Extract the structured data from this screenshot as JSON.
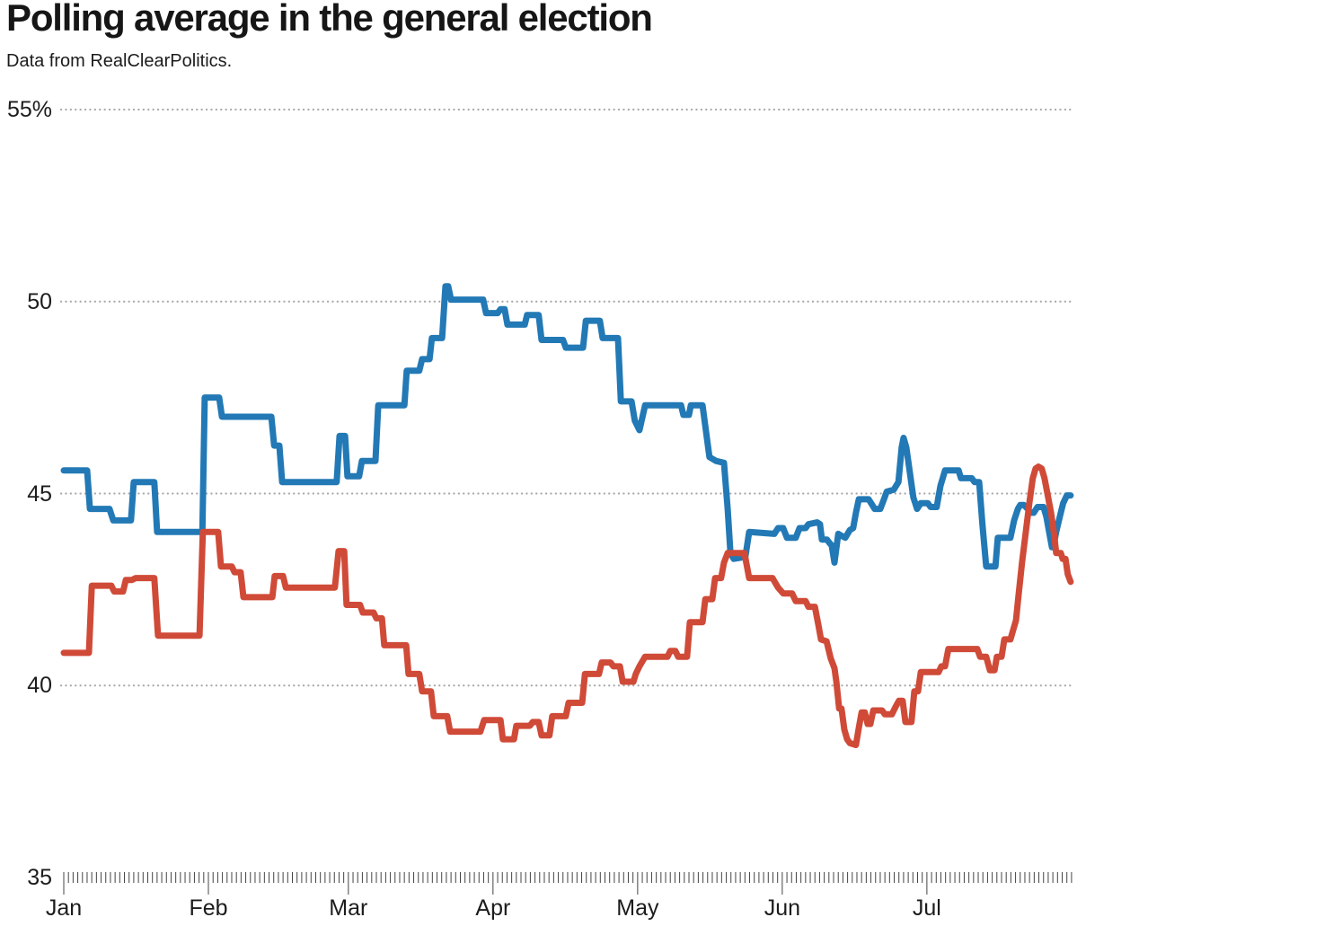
{
  "header": {
    "title": "Polling average in the general election",
    "subtitle": "Data from RealClearPolitics."
  },
  "chart_data": {
    "type": "line",
    "title": "Polling average in the general election",
    "source_note": "Data from RealClearPolitics.",
    "unit": "%",
    "legend": "none",
    "grid": "horizontal-dotted",
    "y_axis": {
      "labels": [
        "55%",
        "50",
        "45",
        "40",
        "35"
      ],
      "values": [
        55,
        50,
        45,
        40,
        35
      ],
      "gridlines": [
        55,
        50,
        45,
        40
      ],
      "range": [
        35,
        55
      ]
    },
    "x_axis": {
      "months": [
        "Jan",
        "Feb",
        "Mar",
        "Apr",
        "May",
        "Jun",
        "Jul"
      ],
      "month_start_days": [
        0,
        31,
        61,
        92,
        123,
        154,
        185
      ],
      "total_days": 216,
      "minor_tick": "daily"
    },
    "series": [
      {
        "name": "blue",
        "color": "#2279b5",
        "points": [
          [
            0,
            45.6
          ],
          [
            5,
            45.6
          ],
          [
            5.6,
            44.6
          ],
          [
            9.8,
            44.6
          ],
          [
            10.6,
            44.3
          ],
          [
            14.4,
            44.3
          ],
          [
            15,
            45.3
          ],
          [
            19.4,
            45.3
          ],
          [
            20,
            44
          ],
          [
            29.7,
            44
          ],
          [
            30.2,
            47.5
          ],
          [
            33.3,
            47.5
          ],
          [
            33.9,
            47
          ],
          [
            44.5,
            47
          ],
          [
            45.1,
            46.25
          ],
          [
            46.2,
            46.25
          ],
          [
            46.8,
            45.3
          ],
          [
            58.5,
            45.3
          ],
          [
            59.1,
            46.5
          ],
          [
            60.3,
            46.5
          ],
          [
            60.8,
            45.45
          ],
          [
            63.3,
            45.45
          ],
          [
            63.9,
            45.85
          ],
          [
            66.8,
            45.85
          ],
          [
            67.4,
            47.3
          ],
          [
            73,
            47.3
          ],
          [
            73.5,
            48.2
          ],
          [
            76.2,
            48.2
          ],
          [
            76.8,
            48.5
          ],
          [
            78.4,
            48.5
          ],
          [
            78.9,
            49.05
          ],
          [
            81.1,
            49.05
          ],
          [
            81.8,
            50.4
          ],
          [
            82.4,
            50.4
          ],
          [
            83,
            50.05
          ],
          [
            89.9,
            50.05
          ],
          [
            90.5,
            49.7
          ],
          [
            93,
            49.7
          ],
          [
            93.6,
            49.8
          ],
          [
            94.5,
            49.8
          ],
          [
            95.1,
            49.4
          ],
          [
            98.8,
            49.4
          ],
          [
            99.3,
            49.65
          ],
          [
            101.8,
            49.65
          ],
          [
            102.4,
            49
          ],
          [
            107,
            49
          ],
          [
            107.6,
            48.8
          ],
          [
            111.3,
            48.8
          ],
          [
            111.9,
            49.5
          ],
          [
            114.9,
            49.5
          ],
          [
            115.5,
            49.05
          ],
          [
            118.8,
            49.05
          ],
          [
            119.4,
            47.4
          ],
          [
            121.7,
            47.4
          ],
          [
            122.4,
            46.9
          ],
          [
            123.4,
            46.65
          ],
          [
            124.6,
            47.3
          ],
          [
            132.3,
            47.3
          ],
          [
            132.8,
            47.05
          ],
          [
            134,
            47.05
          ],
          [
            134.4,
            47.3
          ],
          [
            136.9,
            47.3
          ],
          [
            138.4,
            45.95
          ],
          [
            139.8,
            45.85
          ],
          [
            141.5,
            45.8
          ],
          [
            142.3,
            44.6
          ],
          [
            142.9,
            43.45
          ],
          [
            143.6,
            43.3
          ],
          [
            146.1,
            43.35
          ],
          [
            146.9,
            44
          ],
          [
            152.3,
            43.95
          ],
          [
            153.1,
            44.1
          ],
          [
            154.2,
            44.1
          ],
          [
            155,
            43.85
          ],
          [
            156.9,
            43.85
          ],
          [
            157.7,
            44.1
          ],
          [
            159,
            44.1
          ],
          [
            159.6,
            44.2
          ],
          [
            161.5,
            44.25
          ],
          [
            162.1,
            44.2
          ],
          [
            162.5,
            43.8
          ],
          [
            163.6,
            43.8
          ],
          [
            164.2,
            43.7
          ],
          [
            164.6,
            43.65
          ],
          [
            165.2,
            43.2
          ],
          [
            166,
            43.95
          ],
          [
            166.7,
            43.9
          ],
          [
            167.5,
            43.85
          ],
          [
            168.5,
            44.05
          ],
          [
            169.2,
            44.1
          ],
          [
            169.8,
            44.5
          ],
          [
            170.4,
            44.85
          ],
          [
            172.5,
            44.85
          ],
          [
            173.3,
            44.7
          ],
          [
            173.8,
            44.6
          ],
          [
            175,
            44.6
          ],
          [
            175.8,
            44.85
          ],
          [
            176.4,
            45.05
          ],
          [
            177.9,
            45.1
          ],
          [
            178.9,
            45.3
          ],
          [
            179.6,
            46.2
          ],
          [
            180,
            46.45
          ],
          [
            180.6,
            46.2
          ],
          [
            181.4,
            45.5
          ],
          [
            182.1,
            44.9
          ],
          [
            182.9,
            44.6
          ],
          [
            183.7,
            44.75
          ],
          [
            185.2,
            44.75
          ],
          [
            185.8,
            44.65
          ],
          [
            187.1,
            44.65
          ],
          [
            187.9,
            45.2
          ],
          [
            188.9,
            45.6
          ],
          [
            191.8,
            45.6
          ],
          [
            192.3,
            45.4
          ],
          [
            194.6,
            45.4
          ],
          [
            195.2,
            45.3
          ],
          [
            196.2,
            45.3
          ],
          [
            196.9,
            44.2
          ],
          [
            197.7,
            43.1
          ],
          [
            199.7,
            43.1
          ],
          [
            200.2,
            43.85
          ],
          [
            202.9,
            43.85
          ],
          [
            203.7,
            44.3
          ],
          [
            204.5,
            44.6
          ],
          [
            205,
            44.7
          ],
          [
            205.8,
            44.7
          ],
          [
            206.6,
            44.6
          ],
          [
            207.2,
            44.5
          ],
          [
            207.9,
            44.5
          ],
          [
            208.7,
            44.65
          ],
          [
            210,
            44.65
          ],
          [
            210.6,
            44.4
          ],
          [
            211.2,
            44
          ],
          [
            211.8,
            43.6
          ],
          [
            212.1,
            43.6
          ],
          [
            212.7,
            44
          ],
          [
            213.5,
            44.4
          ],
          [
            214.2,
            44.75
          ],
          [
            215,
            44.95
          ],
          [
            215.8,
            44.95
          ]
        ]
      },
      {
        "name": "red",
        "color": "#d04a38",
        "points": [
          [
            0,
            40.85
          ],
          [
            5.4,
            40.85
          ],
          [
            6,
            42.6
          ],
          [
            10.2,
            42.6
          ],
          [
            10.8,
            42.45
          ],
          [
            12.7,
            42.45
          ],
          [
            13.3,
            42.75
          ],
          [
            14.6,
            42.75
          ],
          [
            15.4,
            42.8
          ],
          [
            19.4,
            42.8
          ],
          [
            20.2,
            41.3
          ],
          [
            29.1,
            41.3
          ],
          [
            29.8,
            44
          ],
          [
            33.1,
            44
          ],
          [
            33.7,
            43.1
          ],
          [
            36,
            43.1
          ],
          [
            36.6,
            42.95
          ],
          [
            37.9,
            42.95
          ],
          [
            38.5,
            42.3
          ],
          [
            44.7,
            42.3
          ],
          [
            45.2,
            42.85
          ],
          [
            47,
            42.85
          ],
          [
            47.6,
            42.55
          ],
          [
            58.1,
            42.55
          ],
          [
            58.9,
            43.5
          ],
          [
            60.1,
            43.5
          ],
          [
            60.6,
            42.1
          ],
          [
            63.5,
            42.1
          ],
          [
            64.1,
            41.9
          ],
          [
            66.4,
            41.9
          ],
          [
            67,
            41.75
          ],
          [
            68.2,
            41.75
          ],
          [
            68.7,
            41.05
          ],
          [
            73.4,
            41.05
          ],
          [
            73.9,
            40.3
          ],
          [
            76.2,
            40.3
          ],
          [
            76.8,
            39.85
          ],
          [
            78.7,
            39.85
          ],
          [
            79.3,
            39.2
          ],
          [
            82.2,
            39.2
          ],
          [
            82.8,
            38.8
          ],
          [
            89.3,
            38.8
          ],
          [
            90.1,
            39.1
          ],
          [
            93.6,
            39.1
          ],
          [
            94.1,
            38.6
          ],
          [
            96.5,
            38.6
          ],
          [
            97,
            38.95
          ],
          [
            99.9,
            38.95
          ],
          [
            100.5,
            39.05
          ],
          [
            101.8,
            39.05
          ],
          [
            102.4,
            38.7
          ],
          [
            104.1,
            38.7
          ],
          [
            104.7,
            39.2
          ],
          [
            107.6,
            39.2
          ],
          [
            108.2,
            39.55
          ],
          [
            111.1,
            39.55
          ],
          [
            111.7,
            40.3
          ],
          [
            114.7,
            40.3
          ],
          [
            115.3,
            40.6
          ],
          [
            117.2,
            40.6
          ],
          [
            117.8,
            40.5
          ],
          [
            119.2,
            40.5
          ],
          [
            119.8,
            40.1
          ],
          [
            122.1,
            40.1
          ],
          [
            122.6,
            40.3
          ],
          [
            123.4,
            40.5
          ],
          [
            124.6,
            40.75
          ],
          [
            129.4,
            40.75
          ],
          [
            130,
            40.9
          ],
          [
            131.1,
            40.9
          ],
          [
            131.7,
            40.75
          ],
          [
            133.6,
            40.75
          ],
          [
            134.2,
            41.65
          ],
          [
            136.9,
            41.65
          ],
          [
            137.5,
            42.25
          ],
          [
            139,
            42.25
          ],
          [
            139.6,
            42.8
          ],
          [
            140.9,
            42.8
          ],
          [
            141.5,
            43.2
          ],
          [
            142.3,
            43.45
          ],
          [
            145.9,
            43.45
          ],
          [
            146.9,
            42.8
          ],
          [
            151.9,
            42.8
          ],
          [
            153.1,
            42.55
          ],
          [
            154.2,
            42.4
          ],
          [
            156.1,
            42.4
          ],
          [
            156.9,
            42.2
          ],
          [
            159,
            42.2
          ],
          [
            159.6,
            42.05
          ],
          [
            161,
            42.05
          ],
          [
            161.7,
            41.6
          ],
          [
            162.3,
            41.2
          ],
          [
            163.5,
            41.15
          ],
          [
            164.4,
            40.7
          ],
          [
            165.2,
            40.45
          ],
          [
            165.6,
            40.1
          ],
          [
            166.2,
            39.4
          ],
          [
            166.7,
            39.4
          ],
          [
            167.3,
            38.85
          ],
          [
            167.9,
            38.6
          ],
          [
            168.5,
            38.5
          ],
          [
            169.8,
            38.45
          ],
          [
            170.4,
            38.9
          ],
          [
            171,
            39.3
          ],
          [
            171.7,
            39.3
          ],
          [
            172.3,
            39
          ],
          [
            172.9,
            39
          ],
          [
            173.5,
            39.35
          ],
          [
            175.4,
            39.35
          ],
          [
            176,
            39.25
          ],
          [
            177.5,
            39.25
          ],
          [
            178.3,
            39.45
          ],
          [
            179,
            39.6
          ],
          [
            179.8,
            39.6
          ],
          [
            180.4,
            39.05
          ],
          [
            181.7,
            39.05
          ],
          [
            182.3,
            39.85
          ],
          [
            183.1,
            39.85
          ],
          [
            183.7,
            40.35
          ],
          [
            187.5,
            40.35
          ],
          [
            188.1,
            40.5
          ],
          [
            188.9,
            40.5
          ],
          [
            189.6,
            40.95
          ],
          [
            195.8,
            40.95
          ],
          [
            196.4,
            40.75
          ],
          [
            197.7,
            40.75
          ],
          [
            198.5,
            40.4
          ],
          [
            199.5,
            40.4
          ],
          [
            200,
            40.75
          ],
          [
            201,
            40.75
          ],
          [
            201.6,
            41.2
          ],
          [
            202.9,
            41.2
          ],
          [
            204.1,
            41.7
          ],
          [
            204.6,
            42.3
          ],
          [
            205.4,
            43.2
          ],
          [
            206.2,
            44
          ],
          [
            207,
            44.8
          ],
          [
            207.7,
            45.4
          ],
          [
            208.3,
            45.65
          ],
          [
            208.9,
            45.7
          ],
          [
            209.6,
            45.65
          ],
          [
            210.2,
            45.4
          ],
          [
            211,
            44.9
          ],
          [
            211.6,
            44.5
          ],
          [
            212.3,
            43.9
          ],
          [
            212.7,
            43.45
          ],
          [
            213.7,
            43.45
          ],
          [
            214.1,
            43.3
          ],
          [
            214.7,
            43.3
          ],
          [
            215.2,
            42.9
          ],
          [
            215.8,
            42.7
          ]
        ]
      }
    ],
    "style": {
      "gridline_color": "#aaaaaa",
      "tick_color": "#444444",
      "text_color": "#1c1c1c"
    }
  }
}
